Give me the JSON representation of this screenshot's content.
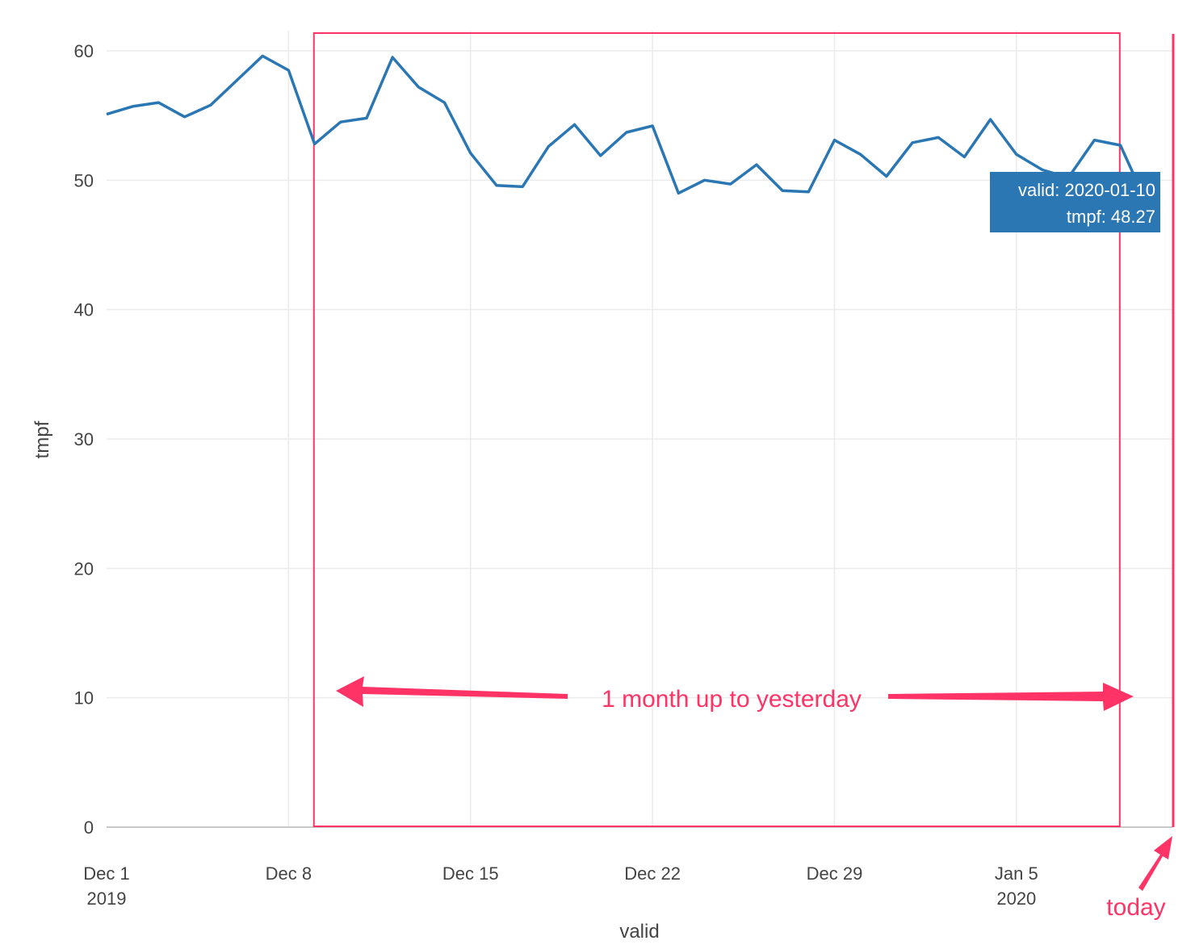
{
  "chart_data": {
    "type": "line",
    "xlabel": "valid",
    "ylabel": "tmpf",
    "ylim": [
      0,
      60
    ],
    "xlim": [
      "2019-12-01",
      "2020-01-11"
    ],
    "yticks": [
      0,
      10,
      20,
      30,
      40,
      50,
      60
    ],
    "xticks": [
      {
        "date": "2019-12-01",
        "label": "Dec 1",
        "sub": "2019"
      },
      {
        "date": "2019-12-08",
        "label": "Dec 8",
        "sub": ""
      },
      {
        "date": "2019-12-15",
        "label": "Dec 15",
        "sub": ""
      },
      {
        "date": "2019-12-22",
        "label": "Dec 22",
        "sub": ""
      },
      {
        "date": "2019-12-29",
        "label": "Dec 29",
        "sub": ""
      },
      {
        "date": "2020-01-05",
        "label": "Jan 5",
        "sub": "2020"
      }
    ],
    "grid": true,
    "line_color": "#2a77b4",
    "series": [
      {
        "x": [
          "2019-12-01",
          "2019-12-02",
          "2019-12-03",
          "2019-12-04",
          "2019-12-05",
          "2019-12-06",
          "2019-12-07",
          "2019-12-08",
          "2019-12-09",
          "2019-12-10",
          "2019-12-11",
          "2019-12-12",
          "2019-12-13",
          "2019-12-14",
          "2019-12-15",
          "2019-12-16",
          "2019-12-17",
          "2019-12-18",
          "2019-12-19",
          "2019-12-20",
          "2019-12-21",
          "2019-12-22",
          "2019-12-23",
          "2019-12-24",
          "2019-12-25",
          "2019-12-26",
          "2019-12-27",
          "2019-12-28",
          "2019-12-29",
          "2019-12-30",
          "2019-12-31",
          "2020-01-01",
          "2020-01-02",
          "2020-01-03",
          "2020-01-04",
          "2020-01-05",
          "2020-01-06",
          "2020-01-07",
          "2020-01-08",
          "2020-01-09",
          "2020-01-10"
        ],
        "values": [
          55.1,
          55.7,
          56.0,
          54.9,
          55.8,
          57.7,
          59.6,
          58.5,
          52.8,
          54.5,
          54.8,
          59.5,
          57.2,
          56.0,
          52.1,
          49.6,
          49.5,
          52.6,
          54.3,
          51.9,
          53.7,
          54.2,
          49.0,
          50.0,
          49.7,
          51.2,
          49.2,
          49.1,
          53.1,
          52.0,
          50.3,
          52.9,
          53.3,
          51.8,
          54.7,
          52.0,
          50.8,
          50.2,
          53.1,
          52.7,
          48.27
        ]
      }
    ],
    "annotations": {
      "range_label": "1 month up to yesterday",
      "range_start": "2019-12-10",
      "range_end": "2020-01-10",
      "today_label": "today",
      "today_date": "2020-01-11",
      "color": "#ff3366"
    },
    "tooltip": {
      "line1": "valid: 2020-01-10",
      "line2": "tmpf: 48.27",
      "bg_color": "#2a77b4"
    }
  }
}
